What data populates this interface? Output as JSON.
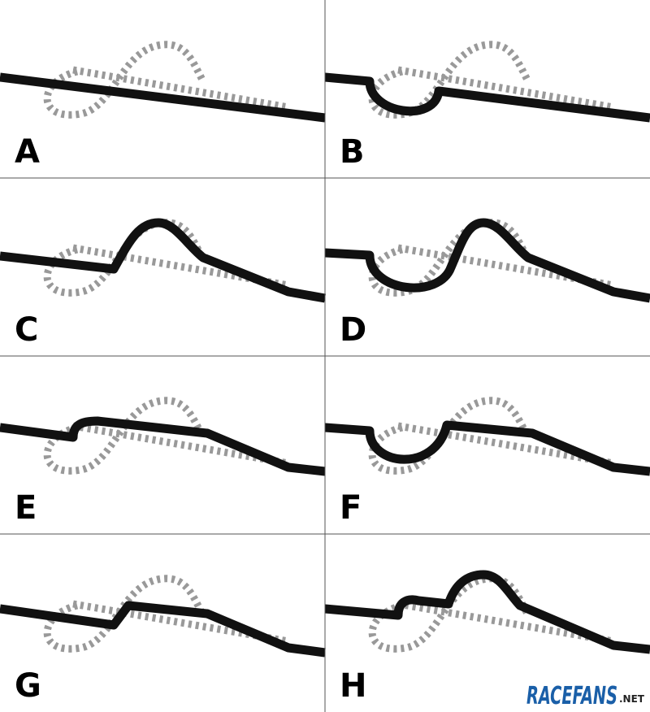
{
  "panels": [
    {
      "label": "A"
    },
    {
      "label": "B"
    },
    {
      "label": "C"
    },
    {
      "label": "D"
    },
    {
      "label": "E"
    },
    {
      "label": "F"
    },
    {
      "label": "G"
    },
    {
      "label": "H"
    }
  ],
  "logo": {
    "text": "RACEFANS",
    "suffix": ".NET"
  }
}
